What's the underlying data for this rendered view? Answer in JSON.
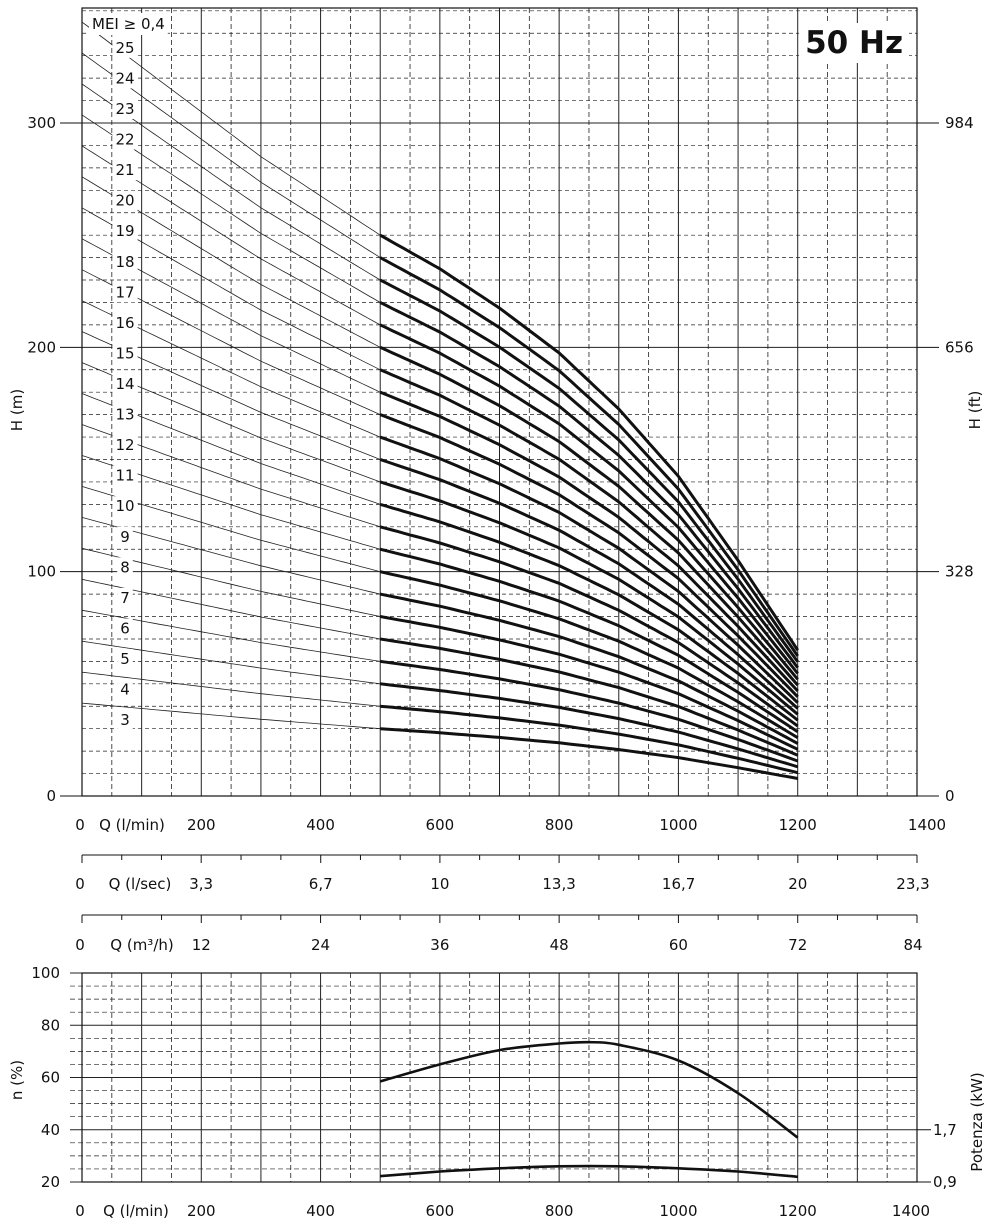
{
  "chart_data": [
    {
      "type": "line",
      "title": "50 Hz",
      "annotation": "MEI ≥ 0,4",
      "xlabel": "Q (l/min)",
      "ylabel": "H (m)",
      "ylabel_right": "H (ft)",
      "xlim": [
        0,
        1400
      ],
      "ylim": [
        0,
        300
      ],
      "x_ticks": [
        "0",
        "200",
        "400",
        "600",
        "800",
        "1000",
        "1200",
        "1400"
      ],
      "y_ticks": [
        "0",
        "100",
        "200",
        "300"
      ],
      "y_ticks_right": [
        {
          "value": 0,
          "label": "0"
        },
        {
          "value": 100,
          "label": "328"
        },
        {
          "value": 200,
          "label": "656"
        },
        {
          "value": 300,
          "label": "984"
        }
      ],
      "grid": true,
      "operating_range_q": [
        500,
        1200
      ],
      "stages": [
        3,
        4,
        5,
        6,
        7,
        8,
        9,
        10,
        11,
        12,
        13,
        14,
        15,
        16,
        17,
        18,
        19,
        20,
        21,
        22,
        23,
        24,
        25
      ],
      "stage_labels": [
        "3",
        "4",
        "5",
        "6",
        "7",
        "8",
        "9",
        "10",
        "11",
        "12",
        "13",
        "14",
        "15",
        "16",
        "17",
        "18",
        "19",
        "20",
        "21",
        "22",
        "23",
        "24",
        "25"
      ],
      "head_per_stage_curve": {
        "q": [
          0,
          100,
          200,
          300,
          400,
          500,
          600,
          700,
          800,
          900,
          1000,
          1100,
          1200
        ],
        "h": [
          13.8,
          13.0,
          12.2,
          11.4,
          10.7,
          10.0,
          9.4,
          8.7,
          7.9,
          6.9,
          5.7,
          4.2,
          2.6
        ]
      }
    },
    {
      "type": "axis",
      "xlabel": "Q (l/sec)",
      "x_ticks": [
        {
          "value": 0,
          "label": "0"
        },
        {
          "value": 3.33,
          "label": "3,3"
        },
        {
          "value": 6.67,
          "label": "6,7"
        },
        {
          "value": 10,
          "label": "10"
        },
        {
          "value": 13.33,
          "label": "13,3"
        },
        {
          "value": 16.67,
          "label": "16,7"
        },
        {
          "value": 20,
          "label": "20"
        },
        {
          "value": 23.33,
          "label": "23,3"
        }
      ],
      "xlim": [
        0,
        23.33
      ]
    },
    {
      "type": "axis",
      "xlabel": "Q (m³/h)",
      "x_ticks": [
        {
          "value": 0,
          "label": "0"
        },
        {
          "value": 12,
          "label": "12"
        },
        {
          "value": 24,
          "label": "24"
        },
        {
          "value": 36,
          "label": "36"
        },
        {
          "value": 48,
          "label": "48"
        },
        {
          "value": 60,
          "label": "60"
        },
        {
          "value": 72,
          "label": "72"
        },
        {
          "value": 84,
          "label": "84"
        }
      ],
      "xlim": [
        0,
        84
      ]
    },
    {
      "type": "line",
      "xlabel": "Q (l/min)",
      "ylabel": "n (%)",
      "ylabel_right": "Potenza (kW)",
      "xlim": [
        0,
        1400
      ],
      "ylim": [
        20,
        100
      ],
      "x_ticks": [
        "0",
        "200",
        "400",
        "600",
        "800",
        "1000",
        "1200",
        "1400"
      ],
      "y_ticks": [
        "20",
        "40",
        "60",
        "80",
        "100"
      ],
      "y_ticks_right": [
        {
          "value": 0.9,
          "label": "0,9"
        },
        {
          "value": 1.7,
          "label": "1,7"
        }
      ],
      "grid": true,
      "series": [
        {
          "x": [
            500,
            600,
            700,
            800,
            850,
            900,
            1000,
            1100,
            1200
          ],
          "y": [
            58.5,
            65,
            70.5,
            73,
            73.5,
            72.5,
            66.5,
            54,
            37
          ],
          "axis": "left"
        },
        {
          "x": [
            500,
            600,
            700,
            800,
            900,
            1000,
            1100,
            1200
          ],
          "y": [
            0.99,
            1.06,
            1.11,
            1.14,
            1.14,
            1.11,
            1.06,
            0.98
          ],
          "axis": "right",
          "ylim_right": [
            0.9,
            1.7
          ]
        }
      ]
    }
  ]
}
